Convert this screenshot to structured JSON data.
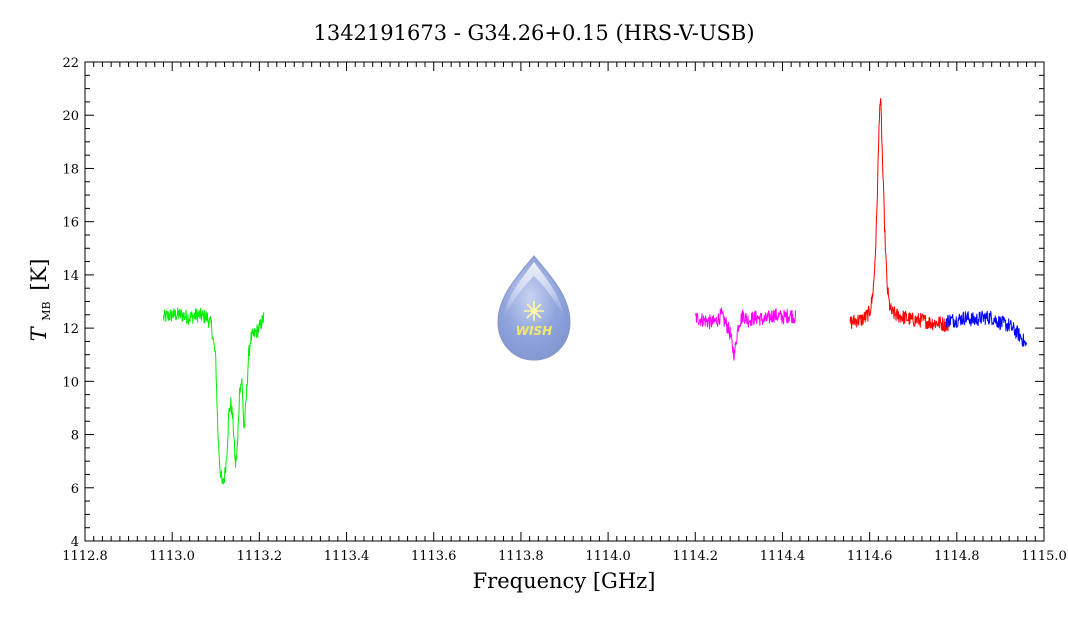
{
  "chart_data": {
    "type": "line",
    "title": "1342191673 - G34.26+0.15 (HRS-V-USB)",
    "xlabel": "Frequency [GHz]",
    "ylabel_main": "T",
    "ylabel_sub": "MB",
    "ylabel_unit": "[K]",
    "xlim": [
      1112.8,
      1115.0
    ],
    "ylim": [
      4,
      22
    ],
    "xticks": [
      "1112.8",
      "1113.0",
      "1113.2",
      "1113.4",
      "1113.6",
      "1113.8",
      "1114.0",
      "1114.2",
      "1114.4",
      "1114.6",
      "1114.8",
      "1115.0"
    ],
    "yticks": [
      "4",
      "6",
      "8",
      "10",
      "12",
      "14",
      "16",
      "18",
      "20",
      "22"
    ],
    "grid": false,
    "logo_text": "WISH",
    "series": [
      {
        "color": "#00ee00",
        "x": [
          1112.98,
          1113.0,
          1113.02,
          1113.04,
          1113.06,
          1113.08,
          1113.09,
          1113.1,
          1113.105,
          1113.11,
          1113.115,
          1113.12,
          1113.125,
          1113.13,
          1113.135,
          1113.14,
          1113.145,
          1113.15,
          1113.155,
          1113.16,
          1113.165,
          1113.17,
          1113.175,
          1113.18,
          1113.19,
          1113.2,
          1113.21
        ],
        "y": [
          12.4,
          12.5,
          12.5,
          12.4,
          12.5,
          12.4,
          12.1,
          10.8,
          8.0,
          6.7,
          6.1,
          6.4,
          7.2,
          8.8,
          9.2,
          8.4,
          6.8,
          7.6,
          9.8,
          10.0,
          8.1,
          9.4,
          10.9,
          11.6,
          11.8,
          12.0,
          12.4
        ]
      },
      {
        "color": "#ff00ff",
        "x": [
          1114.2,
          1114.22,
          1114.24,
          1114.25,
          1114.26,
          1114.265,
          1114.27,
          1114.28,
          1114.285,
          1114.29,
          1114.295,
          1114.3,
          1114.31,
          1114.32,
          1114.34,
          1114.36,
          1114.38,
          1114.4,
          1114.42,
          1114.43
        ],
        "y": [
          12.4,
          12.3,
          12.2,
          12.3,
          12.5,
          12.3,
          12.2,
          11.8,
          11.3,
          11.0,
          11.7,
          12.2,
          12.5,
          12.3,
          12.4,
          12.3,
          12.5,
          12.4,
          12.5,
          12.4
        ]
      },
      {
        "color": "#ff0000",
        "x": [
          1114.555,
          1114.57,
          1114.58,
          1114.59,
          1114.6,
          1114.605,
          1114.61,
          1114.615,
          1114.62,
          1114.623,
          1114.626,
          1114.63,
          1114.635,
          1114.64,
          1114.645,
          1114.65,
          1114.66,
          1114.68,
          1114.7,
          1114.72,
          1114.74,
          1114.76,
          1114.78
        ],
        "y": [
          12.2,
          12.3,
          12.3,
          12.4,
          12.6,
          13.0,
          13.8,
          15.5,
          18.5,
          20.5,
          20.3,
          18.0,
          15.5,
          13.6,
          12.9,
          12.6,
          12.5,
          12.4,
          12.3,
          12.3,
          12.2,
          12.2,
          12.1
        ]
      },
      {
        "color": "#0000ff",
        "x": [
          1114.775,
          1114.8,
          1114.82,
          1114.84,
          1114.86,
          1114.88,
          1114.9,
          1114.92,
          1114.94,
          1114.95,
          1114.96
        ],
        "y": [
          12.3,
          12.3,
          12.4,
          12.3,
          12.4,
          12.4,
          12.2,
          12.1,
          11.8,
          11.6,
          11.3
        ]
      }
    ]
  }
}
